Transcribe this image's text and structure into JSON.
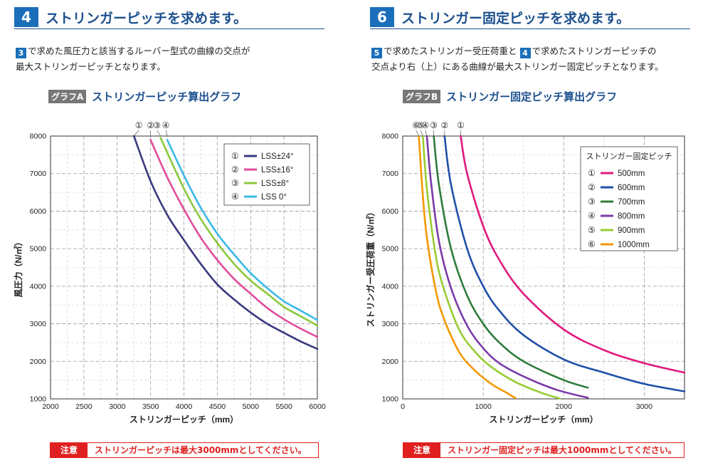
{
  "left": {
    "number": "4",
    "title": "ストリンガーピッチを求めます。",
    "desc_chip": "3",
    "desc_line1": "で求めた風圧力と該当するルーバー型式の曲線の交点が",
    "desc_line2": "最大ストリンガーピッチとなります。",
    "graph_tag": "グラフA",
    "graph_title": "ストリンガーピッチ算出グラフ",
    "note_label": "注意",
    "note_text": "ストリンガーピッチは最大3000mmとしてください。"
  },
  "right": {
    "number": "6",
    "title": "ストリンガー固定ピッチを求めます。",
    "desc_chip1": "5",
    "desc_mid": "で求めたストリンガー受圧荷重と",
    "desc_chip2": "4",
    "desc_end": "で求めたストリンガーピッチの",
    "desc_line2": "交点より右（上）にある曲線が最大ストリンガー固定ピッチとなります。",
    "graph_tag": "グラフB",
    "graph_title": "ストリンガー固定ピッチ算出グラフ",
    "note_label": "注意",
    "note_text": "ストリンガー固定ピッチは最大1000mmとしてください。"
  },
  "chart_data": [
    {
      "type": "line",
      "title": "ストリンガーピッチ算出グラフ",
      "xlabel": "ストリンガーピッチ（mm）",
      "ylabel": "風圧力（N/㎡）",
      "xlim": [
        2000,
        6000
      ],
      "ylim": [
        1000,
        8000
      ],
      "xticks": [
        "2000",
        "2500",
        "3000",
        "3500",
        "4000",
        "4500",
        "5000",
        "5500",
        "6000"
      ],
      "yticks": [
        "1000",
        "2000",
        "3000",
        "4000",
        "5000",
        "6000",
        "7000",
        "8000"
      ],
      "grid": true,
      "legend_position": "top-right",
      "series": [
        {
          "marker": "①",
          "name": "LSS±24°",
          "color": "#3a3a80",
          "x": [
            3250,
            3500,
            3750,
            4000,
            4250,
            4500,
            4750,
            5000,
            5250,
            5500,
            5750,
            6000
          ],
          "y": [
            8000,
            6800,
            5900,
            5230,
            4600,
            4050,
            3650,
            3300,
            3000,
            2760,
            2530,
            2330
          ]
        },
        {
          "marker": "②",
          "name": "LSS±16°",
          "color": "#e24b9a",
          "x": [
            3500,
            3750,
            4000,
            4250,
            4500,
            4750,
            5000,
            5250,
            5500,
            5750,
            6000
          ],
          "y": [
            7900,
            6900,
            6050,
            5300,
            4700,
            4200,
            3800,
            3420,
            3120,
            2870,
            2650
          ]
        },
        {
          "marker": "③",
          "name": "LSS±8°",
          "color": "#8cc83c",
          "x": [
            3650,
            4000,
            4250,
            4500,
            4750,
            5000,
            5250,
            5500,
            5750,
            6000
          ],
          "y": [
            7950,
            6600,
            5800,
            5150,
            4600,
            4150,
            3800,
            3450,
            3200,
            2950
          ]
        },
        {
          "marker": "④",
          "name": "LSS 0°",
          "color": "#3cb9e6",
          "x": [
            3750,
            4000,
            4250,
            4500,
            4750,
            5000,
            5250,
            5500,
            5750,
            6000
          ],
          "y": [
            7900,
            6950,
            6100,
            5400,
            4850,
            4350,
            3950,
            3600,
            3350,
            3100
          ]
        }
      ]
    },
    {
      "type": "line",
      "title": "ストリンガー固定ピッチ算出グラフ",
      "xlabel": "ストリンガーピッチ（mm）",
      "ylabel": "ストリンガー受圧荷重（N/㎡）",
      "xlim": [
        0,
        3500
      ],
      "ylim": [
        1000,
        8000
      ],
      "xticks": [
        "0",
        "1000",
        "2000",
        "3000"
      ],
      "yticks": [
        "1000",
        "2000",
        "3000",
        "4000",
        "5000",
        "6000",
        "7000",
        "8000"
      ],
      "grid": true,
      "legend_title": "ストリンガー固定ピッチ",
      "legend_position": "top-right",
      "series": [
        {
          "marker": "①",
          "name": "500mm",
          "color": "#e0197d",
          "x": [
            720,
            800,
            1000,
            1200,
            1500,
            2000,
            2500,
            3000,
            3500
          ],
          "y": [
            8000,
            7000,
            5600,
            4700,
            3800,
            2850,
            2300,
            1950,
            1700
          ]
        },
        {
          "marker": "②",
          "name": "600mm",
          "color": "#1f4fa8",
          "x": [
            520,
            600,
            800,
            1000,
            1200,
            1500,
            2000,
            2500,
            3000,
            3500
          ],
          "y": [
            8000,
            6700,
            5000,
            4000,
            3350,
            2700,
            2050,
            1700,
            1400,
            1200
          ]
        },
        {
          "marker": "③",
          "name": "700mm",
          "color": "#2e7d3a",
          "x": [
            385,
            450,
            600,
            800,
            1000,
            1200,
            1500,
            2000,
            2300
          ],
          "y": [
            8000,
            6700,
            5000,
            3750,
            3000,
            2500,
            2000,
            1500,
            1300
          ]
        },
        {
          "marker": "④",
          "name": "800mm",
          "color": "#7b3aa8",
          "x": [
            300,
            350,
            450,
            600,
            800,
            1000,
            1200,
            1500,
            1900,
            2300
          ],
          "y": [
            8000,
            6800,
            5200,
            3950,
            2950,
            2350,
            1950,
            1600,
            1250,
            1030
          ]
        },
        {
          "marker": "⑤",
          "name": "900mm",
          "color": "#99cc33",
          "x": [
            250,
            300,
            400,
            500,
            700,
            900,
            1100,
            1400,
            1700,
            1950
          ],
          "y": [
            8000,
            6600,
            4950,
            4000,
            2850,
            2250,
            1850,
            1450,
            1180,
            1010
          ]
        },
        {
          "marker": "⑥",
          "name": "1000mm",
          "color": "#f39800",
          "x": [
            200,
            250,
            300,
            400,
            500,
            700,
            900,
            1100,
            1300,
            1400
          ],
          "y": [
            8000,
            6400,
            5300,
            4000,
            3200,
            2250,
            1750,
            1400,
            1150,
            1020
          ]
        }
      ]
    }
  ]
}
